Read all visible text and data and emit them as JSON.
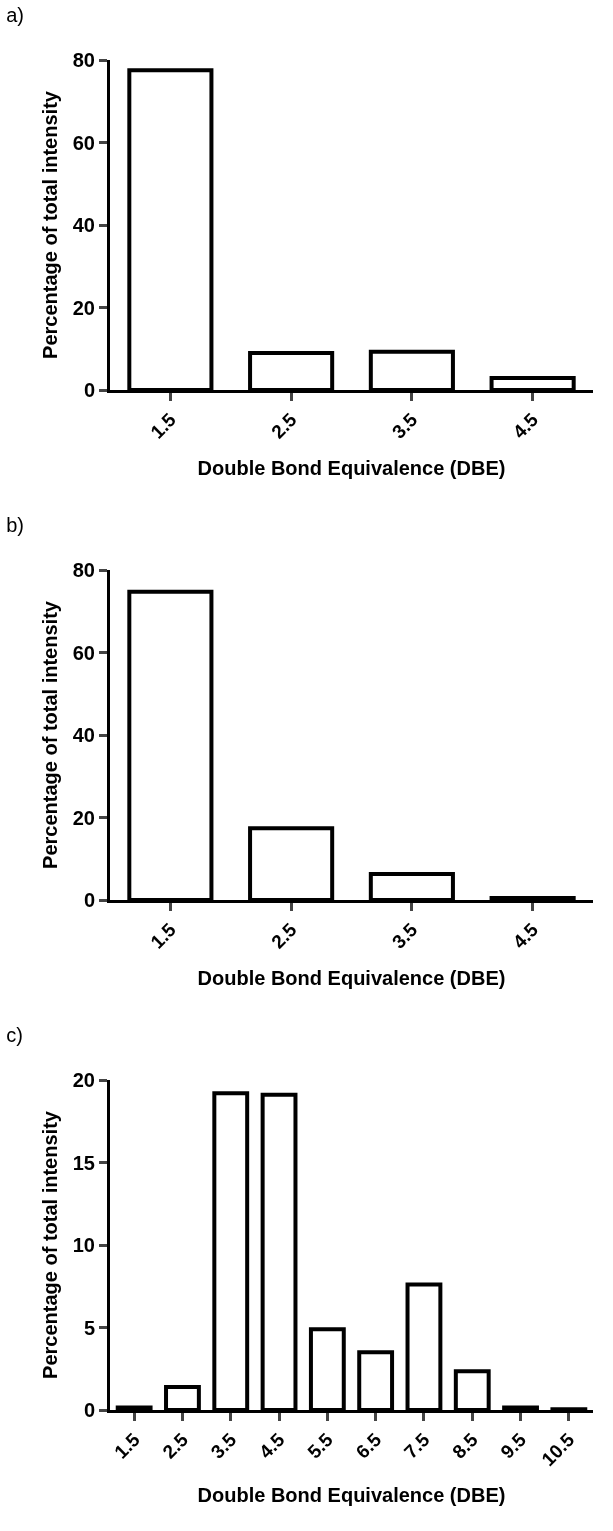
{
  "chart_data": [
    {
      "type": "bar",
      "title": "a)",
      "xlabel": "Double Bond Equivalence (DBE)",
      "ylabel": "Percentage of total intensity",
      "categories": [
        "1.5",
        "2.5",
        "3.5",
        "4.5"
      ],
      "values": [
        77.5,
        9,
        9.3,
        2.9
      ],
      "color": "#ffffff",
      "ylim": [
        0,
        80
      ],
      "yticks": [
        0,
        20,
        40,
        60,
        80
      ],
      "grid": false
    },
    {
      "type": "bar",
      "title": "b)",
      "xlabel": "Double Bond Equivalence (DBE)",
      "ylabel": "Percentage of total intensity",
      "categories": [
        "1.5",
        "2.5",
        "3.5",
        "4.5"
      ],
      "values": [
        74.7,
        17.4,
        6.3,
        0.5
      ],
      "color": "#ffffff",
      "ylim": [
        0,
        80
      ],
      "yticks": [
        0,
        20,
        40,
        60,
        80
      ],
      "grid": false
    },
    {
      "type": "bar",
      "title": "c)",
      "xlabel": "Double Bond Equivalence (DBE)",
      "ylabel": "Percentage of total intensity",
      "categories": [
        "1.5",
        "2.5",
        "3.5",
        "4.5",
        "5.5",
        "6.5",
        "7.5",
        "8.5",
        "9.5",
        "10.5"
      ],
      "values": [
        0.15,
        1.4,
        19.2,
        19.1,
        4.9,
        3.5,
        7.6,
        2.35,
        0.15,
        0.05
      ],
      "color": "#ffffff",
      "ylim": [
        0,
        20
      ],
      "yticks": [
        0,
        5,
        10,
        15,
        20
      ],
      "grid": false
    }
  ]
}
